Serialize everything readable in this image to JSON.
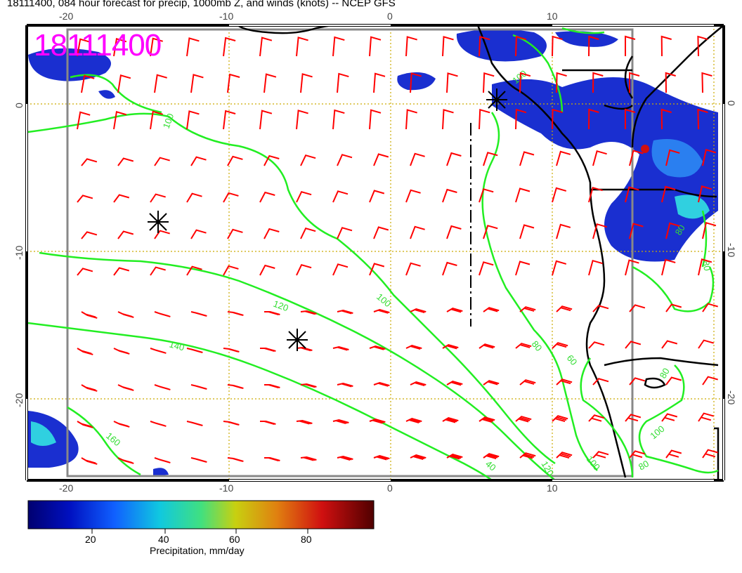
{
  "title": "18111400, 084 hour forecast for precip, 1000mb Z, and winds (knots) -- NCEP GFS",
  "date_stamp": "18111400",
  "axes": {
    "top_ticks": [
      "-20",
      "-10",
      "0",
      "10"
    ],
    "bottom_ticks": [
      "-20",
      "-10",
      "0",
      "10"
    ],
    "left_ticks": [
      "0",
      "-10",
      "-20"
    ],
    "right_ticks": [
      "0",
      "-10",
      "-20"
    ]
  },
  "contour_labels": [
    "100",
    "100",
    "120",
    "140",
    "160",
    "100",
    "80",
    "60",
    "40",
    "120",
    "100",
    "80",
    "80",
    "80",
    "100",
    "80"
  ],
  "colorbar": {
    "ticks": [
      "20",
      "40",
      "60",
      "80"
    ],
    "label": "Precipitation, mm/day"
  },
  "colors": {
    "contour": "#22dd22",
    "barbs": "#ff0000",
    "stamp": "#ff00ff",
    "gridlines": "#ccaa00",
    "frame": "#888888"
  }
}
